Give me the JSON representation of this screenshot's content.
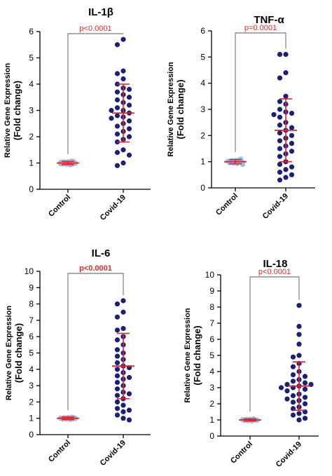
{
  "colors": {
    "control_points": "#8fc0ea",
    "covid_points": "#1a1f7a",
    "error_bars": "#e0232a",
    "pvalue_text": "#d62b2b",
    "axis": "#000000"
  },
  "chart_data": [
    {
      "type": "scatter",
      "title": "IL-1β",
      "ylabel": "Relative Gene Expression (Fold change)",
      "ylim": [
        0,
        6
      ],
      "yticks": [
        0,
        1,
        2,
        3,
        4,
        5,
        6
      ],
      "categories": [
        "Control",
        "Covid-19"
      ],
      "significance": "p<0.0001",
      "significance_bold": false,
      "series": [
        {
          "values": [
            1.0,
            0.97,
            1.03,
            0.95,
            1.05,
            0.93,
            1.07,
            1.0,
            0.98,
            1.02,
            0.96,
            1.04,
            1.0,
            0.99,
            1.01,
            0.94,
            1.06,
            1.0,
            0.97,
            1.03
          ],
          "mean": 1.0,
          "sd": 0.06
        },
        {
          "values": [
            5.7,
            5.5,
            4.5,
            4.4,
            4.2,
            4.0,
            3.85,
            3.8,
            3.7,
            3.6,
            3.5,
            3.4,
            3.3,
            3.2,
            3.1,
            3.0,
            3.0,
            2.9,
            2.8,
            2.75,
            2.7,
            2.6,
            2.5,
            2.4,
            2.3,
            2.2,
            2.1,
            2.0,
            1.9,
            1.8,
            1.5,
            1.4,
            1.3,
            1.0,
            0.9
          ],
          "mean": 2.9,
          "sd": 1.1
        }
      ]
    },
    {
      "type": "scatter",
      "title": "TNF-α",
      "ylabel": "Relative Gene Expression (Fold change)",
      "ylim": [
        0,
        6
      ],
      "yticks": [
        0,
        1,
        2,
        3,
        4,
        5,
        6
      ],
      "categories": [
        "Control",
        "Covid-19"
      ],
      "significance": "p=0.0001",
      "significance_bold": false,
      "series": [
        {
          "values": [
            1.0,
            0.97,
            1.03,
            0.95,
            1.05,
            0.93,
            1.07,
            1.0,
            0.98,
            1.02,
            0.96,
            1.04,
            1.0,
            0.99,
            1.01,
            1.0,
            1.1,
            0.9
          ],
          "mean": 1.0,
          "sd": 0.08
        },
        {
          "values": [
            5.1,
            5.1,
            4.4,
            4.2,
            3.5,
            3.3,
            3.2,
            3.0,
            2.9,
            2.85,
            2.8,
            2.7,
            2.5,
            2.4,
            2.3,
            2.2,
            2.1,
            2.0,
            1.9,
            1.8,
            1.7,
            1.6,
            1.5,
            1.4,
            1.3,
            1.2,
            1.0,
            0.9,
            0.8,
            0.7,
            0.6,
            0.5,
            0.4,
            0.3
          ],
          "mean": 2.2,
          "sd": 1.2
        }
      ]
    },
    {
      "type": "scatter",
      "title": "IL-6",
      "ylabel": "Relative Gene Expression (Fold change)",
      "ylim": [
        0,
        10
      ],
      "yticks": [
        0,
        1,
        2,
        3,
        4,
        5,
        6,
        7,
        8,
        9,
        10
      ],
      "categories": [
        "Control",
        "Covid-19"
      ],
      "significance": "p<0.0001",
      "significance_bold": true,
      "series": [
        {
          "values": [
            1.0,
            0.97,
            1.03,
            0.95,
            1.05,
            0.93,
            1.07,
            1.0,
            0.98,
            1.02,
            0.96,
            1.04,
            1.0,
            0.99,
            1.01,
            0.94,
            1.06,
            1.0
          ],
          "mean": 1.0,
          "sd": 0.08
        },
        {
          "values": [
            8.2,
            8.0,
            7.5,
            7.2,
            6.5,
            6.4,
            6.0,
            5.8,
            5.5,
            5.2,
            5.0,
            4.8,
            4.6,
            4.4,
            4.2,
            4.1,
            4.0,
            3.8,
            3.6,
            3.5,
            3.4,
            3.2,
            3.0,
            2.8,
            2.6,
            2.5,
            2.2,
            2.0,
            1.8,
            1.6,
            1.4,
            1.2,
            1.0,
            0.9,
            1.5,
            2.4
          ],
          "mean": 4.2,
          "sd": 2.0
        }
      ]
    },
    {
      "type": "scatter",
      "title": "IL-18",
      "ylabel": "Relative Gene Expression (Fold change)",
      "ylim": [
        0,
        10
      ],
      "yticks": [
        0,
        1,
        2,
        3,
        4,
        5,
        6,
        7,
        8,
        9,
        10
      ],
      "categories": [
        "Control",
        "Covid-19"
      ],
      "significance": "p<0.0001",
      "significance_bold": false,
      "series": [
        {
          "values": [
            1.0,
            0.97,
            1.03,
            0.95,
            1.05,
            0.93,
            1.07,
            1.0,
            0.98,
            1.02,
            0.96,
            1.04,
            1.0,
            0.99,
            1.01,
            1.0
          ],
          "mean": 1.0,
          "sd": 0.07
        },
        {
          "values": [
            8.1,
            6.8,
            6.3,
            5.7,
            5.0,
            4.9,
            4.5,
            4.3,
            4.0,
            3.8,
            3.7,
            3.5,
            3.4,
            3.3,
            3.2,
            3.2,
            3.1,
            3.0,
            3.0,
            2.9,
            2.8,
            2.6,
            2.5,
            2.4,
            2.3,
            2.2,
            2.1,
            2.0,
            1.8,
            1.7,
            1.5,
            1.4,
            1.3,
            1.1,
            1.0
          ],
          "mean": 3.1,
          "sd": 1.5
        }
      ]
    }
  ]
}
